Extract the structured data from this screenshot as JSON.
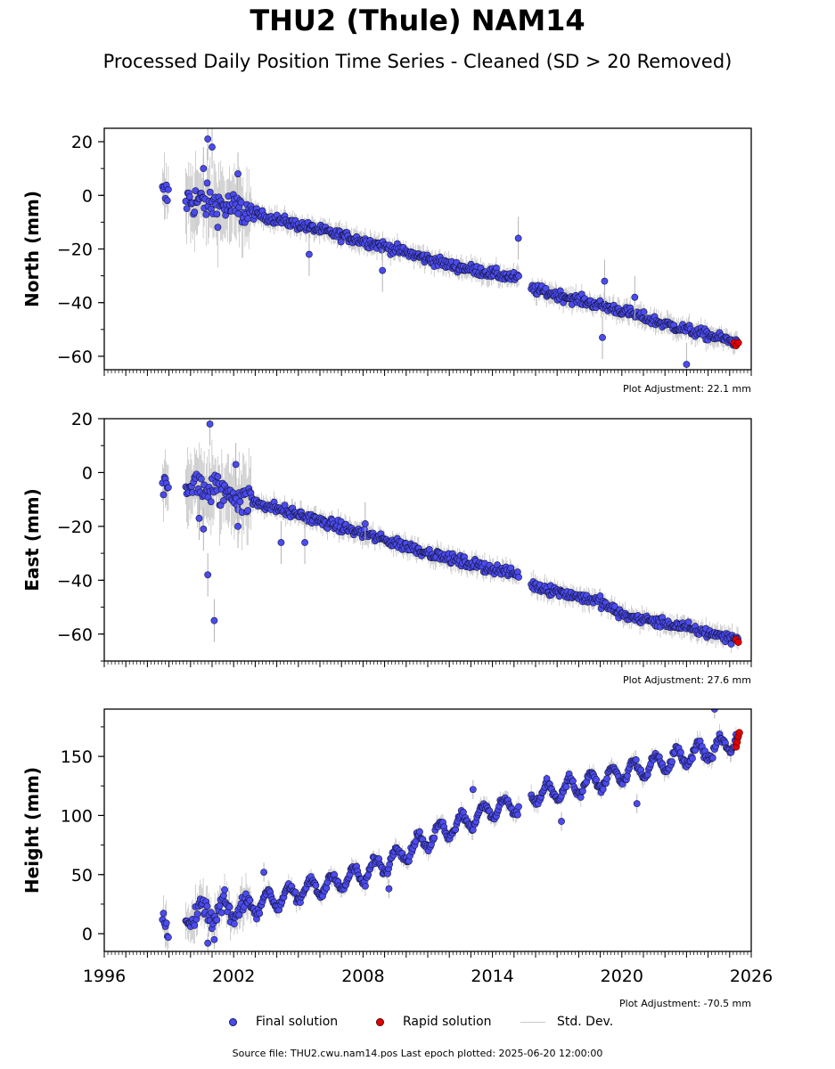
{
  "title": "THU2 (Thule) NAM14",
  "subtitle": "Processed Daily Position Time Series - Cleaned (SD > 20 Removed)",
  "legend": {
    "final": "Final solution",
    "rapid": "Rapid solution",
    "std": "Std. Dev."
  },
  "footer": "Source file: THU2.cwu.nam14.pos  Last epoch plotted: 2025-06-20 12:00:00",
  "colors": {
    "final": "#4b4bf0",
    "rapid": "#e00000",
    "std": "#b4b4b4"
  },
  "chart_data": [
    {
      "type": "scatter",
      "name": "north",
      "ylabel": "North (mm)",
      "xlim": [
        1996,
        2026
      ],
      "ylim": [
        -65,
        25
      ],
      "yticks": [
        -60,
        -40,
        -20,
        0,
        20
      ],
      "adjustment": "Plot Adjustment: 22.1 mm",
      "trend": [
        [
          1998.8,
          0
        ],
        [
          2001,
          -3
        ],
        [
          2003,
          -7
        ],
        [
          2006,
          -13
        ],
        [
          2009,
          -19
        ],
        [
          2012,
          -26
        ],
        [
          2015.2,
          -31
        ],
        [
          2015.9,
          -35
        ],
        [
          2018,
          -39
        ],
        [
          2020,
          -43
        ],
        [
          2022,
          -48
        ],
        [
          2025.4,
          -55
        ]
      ],
      "outliers": [
        [
          2000.8,
          21
        ],
        [
          2001,
          18
        ],
        [
          2000.6,
          10
        ],
        [
          2002.2,
          8
        ],
        [
          2005.5,
          -22
        ],
        [
          2008.9,
          -28
        ],
        [
          2015.2,
          -16
        ],
        [
          2019.2,
          -32
        ],
        [
          2019.1,
          -53
        ],
        [
          2020.6,
          -38
        ],
        [
          2023,
          -63
        ]
      ],
      "rapid": [
        [
          2025.2,
          -55
        ],
        [
          2025.3,
          -56
        ],
        [
          2025.4,
          -55
        ]
      ]
    },
    {
      "type": "scatter",
      "name": "east",
      "ylabel": "East (mm)",
      "xlim": [
        1996,
        2026
      ],
      "ylim": [
        -70,
        20
      ],
      "yticks": [
        -60,
        -40,
        -20,
        0,
        20
      ],
      "adjustment": "Plot Adjustment: 27.6 mm",
      "trend": [
        [
          1998.8,
          -2
        ],
        [
          2000,
          -5
        ],
        [
          2002,
          -8
        ],
        [
          2003,
          -11
        ],
        [
          2006,
          -18
        ],
        [
          2009,
          -25
        ],
        [
          2012,
          -32
        ],
        [
          2015.2,
          -38
        ],
        [
          2015.9,
          -42
        ],
        [
          2019,
          -48
        ],
        [
          2020,
          -53
        ],
        [
          2022,
          -56
        ],
        [
          2025.4,
          -62
        ]
      ],
      "outliers": [
        [
          2000.9,
          18
        ],
        [
          2000.8,
          -38
        ],
        [
          2001.1,
          -55
        ],
        [
          2000.4,
          -17
        ],
        [
          2000.6,
          -21
        ],
        [
          2004.2,
          -26
        ],
        [
          2005.3,
          -26
        ],
        [
          2008.1,
          -19
        ],
        [
          2002.2,
          -20
        ],
        [
          2002.1,
          3
        ]
      ],
      "rapid": [
        [
          2025.3,
          -62
        ],
        [
          2025.4,
          -63
        ]
      ]
    },
    {
      "type": "scatter",
      "name": "height",
      "ylabel": "Height (mm)",
      "xlim": [
        1996,
        2026
      ],
      "ylim": [
        -15,
        190
      ],
      "yticks": [
        0,
        50,
        100,
        150
      ],
      "xticks": [
        1996,
        2002,
        2008,
        2014,
        2020,
        2026
      ],
      "adjustment": "Plot Adjustment: -70.5 mm",
      "trend": [
        [
          1998.8,
          10
        ],
        [
          2000,
          15
        ],
        [
          2002,
          20
        ],
        [
          2004,
          30
        ],
        [
          2006,
          40
        ],
        [
          2008,
          50
        ],
        [
          2010,
          70
        ],
        [
          2012,
          90
        ],
        [
          2014,
          105
        ],
        [
          2015.2,
          110
        ],
        [
          2016,
          118
        ],
        [
          2018,
          125
        ],
        [
          2020,
          135
        ],
        [
          2022,
          145
        ],
        [
          2024,
          155
        ],
        [
          2025.4,
          165
        ]
      ],
      "outliers": [
        [
          2000.8,
          -8
        ],
        [
          2001.1,
          -5
        ],
        [
          2024.3,
          190
        ],
        [
          2020.7,
          110
        ],
        [
          2009.2,
          38
        ],
        [
          2003.4,
          52
        ],
        [
          2013.1,
          122
        ],
        [
          2017.2,
          95
        ]
      ],
      "rapid": [
        [
          2025.3,
          158
        ],
        [
          2025.35,
          162
        ],
        [
          2025.4,
          167
        ],
        [
          2025.45,
          170
        ]
      ]
    }
  ]
}
